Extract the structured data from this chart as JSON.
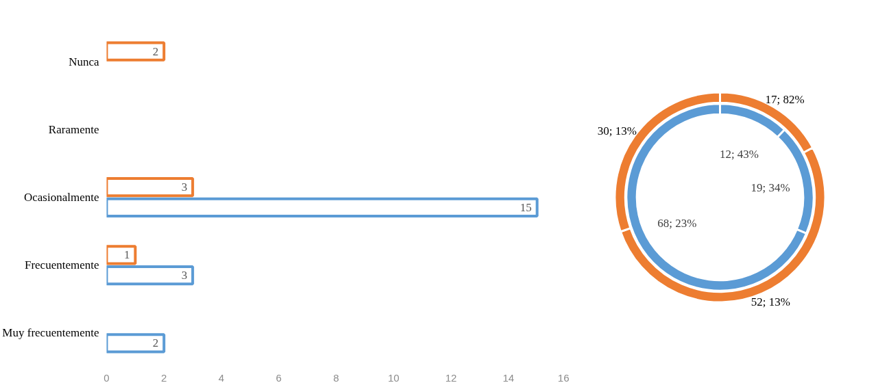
{
  "chart_data": [
    {
      "type": "bar",
      "orientation": "horizontal",
      "categories": [
        "Nunca",
        "Raramente",
        "Ocasionalmente",
        "Frecuentemente",
        "Muy frecuentemente"
      ],
      "series": [
        {
          "color": "#ed7d31",
          "values": [
            2,
            null,
            3,
            1,
            null
          ]
        },
        {
          "color": "#5b9bd5",
          "values": [
            null,
            null,
            15,
            3,
            2
          ]
        }
      ],
      "xlim": [
        0,
        16
      ],
      "xticks": [
        0,
        2,
        4,
        6,
        8,
        10,
        12,
        14,
        16
      ],
      "data_labels": true
    },
    {
      "type": "donut",
      "categories": [
        null,
        null,
        null
      ],
      "series": [
        {
          "color": "#ed7d31",
          "values": [
            17,
            52,
            30
          ],
          "value_labels": [
            "17; 82%",
            "52; 13%",
            "30; 13%"
          ]
        },
        {
          "color": "#5b9bd5",
          "values": [
            12,
            19,
            68
          ],
          "value_labels": [
            "12; 43%",
            "19; 34%",
            "68; 23%"
          ]
        }
      ]
    }
  ]
}
